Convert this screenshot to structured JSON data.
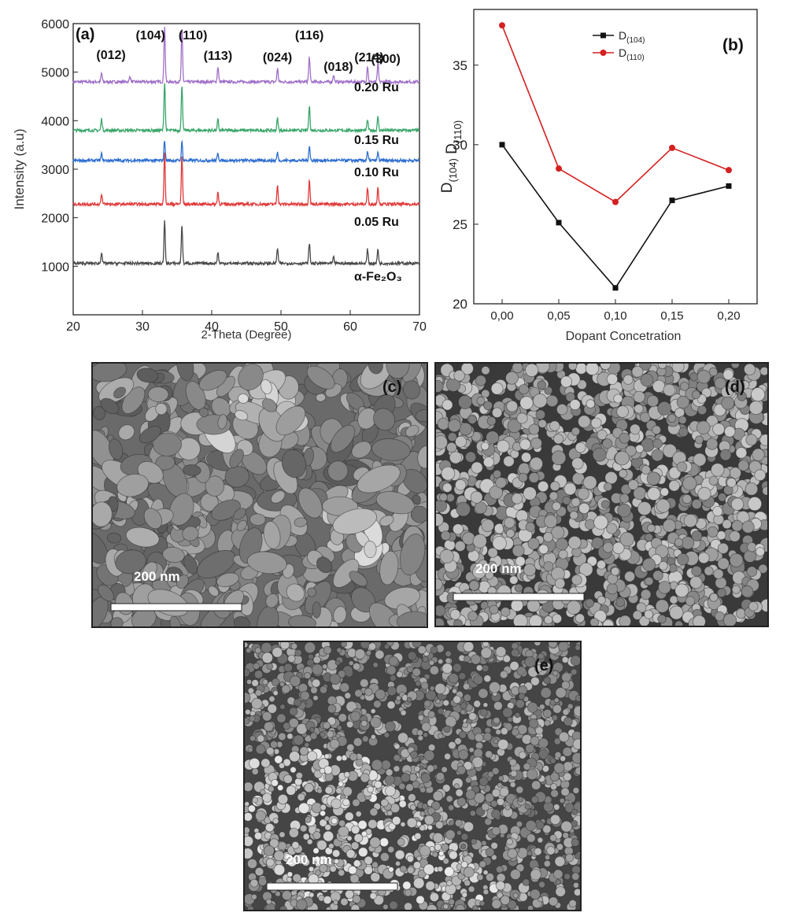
{
  "xrd": {
    "panel_label": "(a)",
    "xlabel": "2-Theta (Degree)",
    "ylabel": "Intensity (a.u)",
    "xticks": [
      "20",
      "30",
      "40",
      "50",
      "60",
      "70"
    ],
    "yticks": [
      "1000",
      "2000",
      "3000",
      "4000",
      "5000",
      "6000"
    ],
    "peak_labels": [
      {
        "text": "(012)",
        "two_theta": 24.1
      },
      {
        "text": "(104)",
        "two_theta": 33.2
      },
      {
        "text": "(110)",
        "two_theta": 35.7
      },
      {
        "text": "(113)",
        "two_theta": 40.9
      },
      {
        "text": "(024)",
        "two_theta": 49.5
      },
      {
        "text": "(116)",
        "two_theta": 54.1
      },
      {
        "text": "(018)",
        "two_theta": 57.6
      },
      {
        "text": "(214)",
        "two_theta": 62.5
      },
      {
        "text": "(300)",
        "two_theta": 64.0
      }
    ],
    "sample_labels": [
      "0.20 Ru",
      "0.15 Ru",
      "0.10 Ru",
      "0.05 Ru",
      "α-Fe₂O₃"
    ]
  },
  "size": {
    "panel_label": "(b)",
    "xlabel": "Dopant Concetration",
    "legend": [
      {
        "base": "D",
        "sub": "(104)"
      },
      {
        "base": "D",
        "sub": "(110)"
      }
    ]
  },
  "sem": {
    "labels": [
      "(c)",
      "(d)",
      "(e)"
    ],
    "scale_text": "200 nm"
  },
  "chart_data": [
    {
      "type": "line",
      "xlim": [
        20,
        70
      ],
      "ylim": [
        0,
        6000
      ],
      "grid": false,
      "series": [
        {
          "name": "0.20 Ru",
          "color": "#a070c8",
          "baseline": 4800,
          "peaks": [
            [
              24.1,
              180
            ],
            [
              28.2,
              120
            ],
            [
              33.2,
              1150
            ],
            [
              35.7,
              1100
            ],
            [
              40.9,
              320
            ],
            [
              49.5,
              280
            ],
            [
              54.1,
              520
            ],
            [
              57.6,
              150
            ],
            [
              62.5,
              330
            ],
            [
              64.0,
              380
            ]
          ]
        },
        {
          "name": "0.15 Ru",
          "color": "#3aa66a",
          "baseline": 3800,
          "peaks": [
            [
              24.1,
              240
            ],
            [
              33.2,
              1000
            ],
            [
              35.7,
              950
            ],
            [
              40.9,
              220
            ],
            [
              49.5,
              250
            ],
            [
              54.1,
              500
            ],
            [
              62.5,
              220
            ],
            [
              64.0,
              280
            ]
          ]
        },
        {
          "name": "0.10 Ru",
          "color": "#2f6fd0",
          "baseline": 3180,
          "peaks": [
            [
              24.1,
              140
            ],
            [
              33.2,
              420
            ],
            [
              35.7,
              380
            ],
            [
              40.9,
              150
            ],
            [
              49.5,
              160
            ],
            [
              54.1,
              300
            ],
            [
              62.5,
              170
            ],
            [
              64.0,
              160
            ]
          ]
        },
        {
          "name": "0.05 Ru",
          "color": "#e03a3a",
          "baseline": 2280,
          "peaks": [
            [
              24.1,
              220
            ],
            [
              33.2,
              1050
            ],
            [
              35.7,
              1000
            ],
            [
              40.9,
              250
            ],
            [
              49.5,
              400
            ],
            [
              54.1,
              500
            ],
            [
              62.5,
              330
            ],
            [
              64.0,
              360
            ]
          ]
        },
        {
          "name": "α-Fe₂O₃",
          "color": "#4a4a4a",
          "baseline": 1060,
          "peaks": [
            [
              24.1,
              240
            ],
            [
              33.2,
              870
            ],
            [
              35.7,
              800
            ],
            [
              40.9,
              230
            ],
            [
              49.5,
              320
            ],
            [
              54.1,
              420
            ],
            [
              57.6,
              120
            ],
            [
              62.5,
              290
            ],
            [
              64.0,
              300
            ]
          ]
        }
      ]
    },
    {
      "type": "line",
      "x": [
        0.0,
        0.05,
        0.1,
        0.15,
        0.2
      ],
      "xticks": [
        "0,00",
        "0,05",
        "0,10",
        "0,15",
        "0,20"
      ],
      "yticks": [
        "20",
        "25",
        "30",
        "35"
      ],
      "xlim": [
        -0.025,
        0.225
      ],
      "ylim": [
        20,
        38.5
      ],
      "legend_position": "top-left",
      "grid": false,
      "series": [
        {
          "name": "D(104)",
          "color": "#111111",
          "marker": "square",
          "values": [
            30.0,
            25.1,
            21.0,
            26.5,
            27.4
          ]
        },
        {
          "name": "D(110)",
          "color": "#d42020",
          "marker": "circle",
          "values": [
            37.5,
            28.5,
            26.4,
            29.8,
            28.4
          ]
        }
      ]
    }
  ]
}
